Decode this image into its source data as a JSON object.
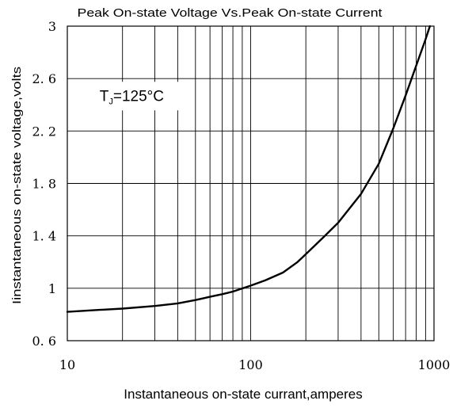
{
  "chart_data": {
    "type": "line",
    "title": "Peak On-state Voltage Vs.Peak On-state Current",
    "xlabel": "Instantaneous on-state currant,amperes",
    "ylabel": "Iinstantaneous on-state voltage,volts",
    "xscale": "log",
    "xlim": [
      10,
      1000
    ],
    "ylim": [
      0.6,
      3
    ],
    "grid": true,
    "x_ticks": [
      {
        "value": 10,
        "label": "10"
      },
      {
        "value": 100,
        "label": "100"
      },
      {
        "value": 1000,
        "label": "1000"
      }
    ],
    "y_ticks": [
      {
        "value": 0.6,
        "label": "0. 6"
      },
      {
        "value": 1,
        "label": "1"
      },
      {
        "value": 1.4,
        "label": "1. 4"
      },
      {
        "value": 1.8,
        "label": "1. 8"
      },
      {
        "value": 2.2,
        "label": "2. 2"
      },
      {
        "value": 2.6,
        "label": "2. 6"
      },
      {
        "value": 3,
        "label": "3"
      }
    ],
    "annotation": {
      "main": "T",
      "sub": "J",
      "rest": "=125°C",
      "x": 15,
      "y": 2.43
    },
    "series": [
      {
        "x": [
          10,
          15,
          20,
          30,
          40,
          50,
          60,
          70,
          80,
          100,
          120,
          150,
          180,
          200,
          250,
          300,
          400,
          500,
          600,
          700,
          800,
          900,
          950
        ],
        "y": [
          0.82,
          0.835,
          0.845,
          0.865,
          0.885,
          0.91,
          0.935,
          0.955,
          0.975,
          1.02,
          1.06,
          1.12,
          1.2,
          1.26,
          1.39,
          1.5,
          1.72,
          1.95,
          2.22,
          2.47,
          2.7,
          2.9,
          3.0
        ]
      }
    ]
  }
}
